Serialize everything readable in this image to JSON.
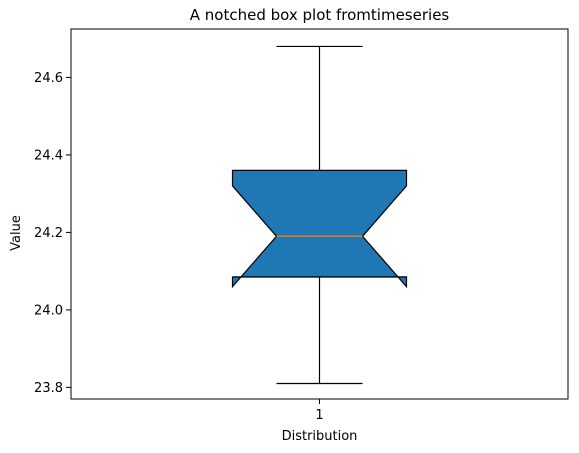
{
  "chart_data": {
    "type": "boxplot",
    "notched": true,
    "title": "A notched box plot fromtimeseries",
    "xlabel": "Distribution",
    "ylabel": "Value",
    "categories": [
      "1"
    ],
    "ylim": [
      23.77,
      24.725
    ],
    "yticks": [
      23.8,
      24.0,
      24.2,
      24.4,
      24.6
    ],
    "ytick_labels": [
      "23.8",
      "24.0",
      "24.2",
      "24.4",
      "24.6"
    ],
    "boxes": [
      {
        "category": "1",
        "whisker_low": 23.81,
        "q1": 24.085,
        "notch_low": 24.06,
        "median": 24.19,
        "notch_high": 24.32,
        "q3": 24.36,
        "whisker_high": 24.68
      }
    ],
    "box_color": "#1f77b4",
    "median_color": "#ff7f0e",
    "grid": false
  }
}
